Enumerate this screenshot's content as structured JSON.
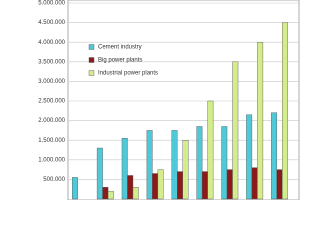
{
  "chart_data": {
    "type": "bar",
    "categories": [
      null,
      null,
      null,
      null,
      null,
      null,
      null,
      null,
      null
    ],
    "series": [
      {
        "name": "Cement industry",
        "color": "#4fc8d8",
        "values": [
          550000,
          1300000,
          1550000,
          1750000,
          1750000,
          1850000,
          1850000,
          2150000,
          2200000
        ]
      },
      {
        "name": "Big power plants",
        "color": "#8b1a1a",
        "values": [
          null,
          300000,
          600000,
          650000,
          700000,
          700000,
          750000,
          800000,
          750000
        ]
      },
      {
        "name": "Industrial power plants",
        "color": "#d4ec8c",
        "values": [
          null,
          200000,
          300000,
          750000,
          1500000,
          2500000,
          3500000,
          4000000,
          4500000
        ]
      }
    ],
    "ylim": [
      0,
      5000000
    ],
    "yticks": [
      {
        "value": 500000,
        "label": "500.000"
      },
      {
        "value": 1000000,
        "label": "1.000.000"
      },
      {
        "value": 1500000,
        "label": "1.500.000"
      },
      {
        "value": 2000000,
        "label": "2.000.000"
      },
      {
        "value": 2500000,
        "label": "2.500.000"
      },
      {
        "value": 3000000,
        "label": "3.000.000"
      },
      {
        "value": 3500000,
        "label": "3.500.000"
      },
      {
        "value": 4000000,
        "label": "4.000.000"
      },
      {
        "value": 4500000,
        "label": "4.500.000"
      },
      {
        "value": 5000000,
        "label": "5.000.000"
      }
    ],
    "grid": true
  }
}
